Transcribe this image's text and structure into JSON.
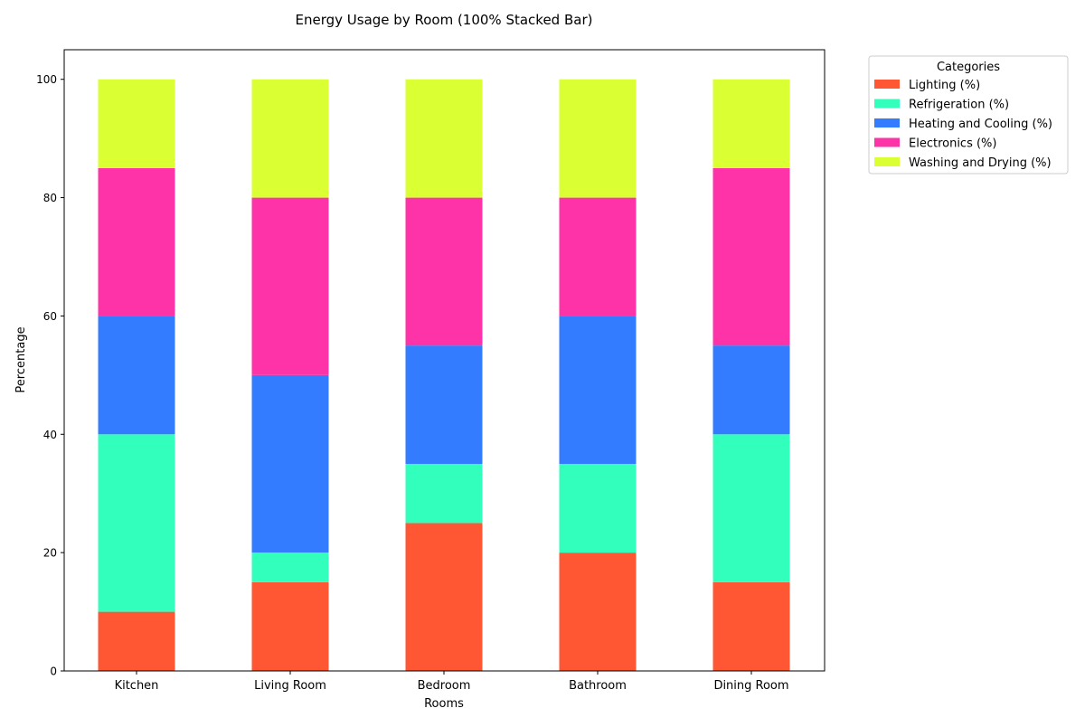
{
  "chart_data": {
    "type": "bar",
    "stacked": true,
    "title": "Energy Usage by Room (100% Stacked Bar)",
    "xlabel": "Rooms",
    "ylabel": "Percentage",
    "ylim": [
      0,
      105
    ],
    "yticks": [
      0,
      20,
      40,
      60,
      80,
      100
    ],
    "grid": false,
    "legend_title": "Categories",
    "legend_position": "outside-top-right",
    "categories": [
      "Kitchen",
      "Living Room",
      "Bedroom",
      "Bathroom",
      "Dining Room"
    ],
    "series": [
      {
        "name": "Lighting (%)",
        "color": "#FF5733",
        "values": [
          10,
          15,
          25,
          20,
          15
        ]
      },
      {
        "name": "Refrigeration (%)",
        "color": "#33FFBD",
        "values": [
          30,
          5,
          10,
          15,
          25
        ]
      },
      {
        "name": "Heating and Cooling (%)",
        "color": "#337BFF",
        "values": [
          20,
          30,
          20,
          25,
          15
        ]
      },
      {
        "name": "Electronics (%)",
        "color": "#FF33A8",
        "values": [
          25,
          30,
          25,
          20,
          30
        ]
      },
      {
        "name": "Washing and Drying (%)",
        "color": "#DAFF33",
        "values": [
          15,
          20,
          20,
          20,
          15
        ]
      }
    ]
  }
}
